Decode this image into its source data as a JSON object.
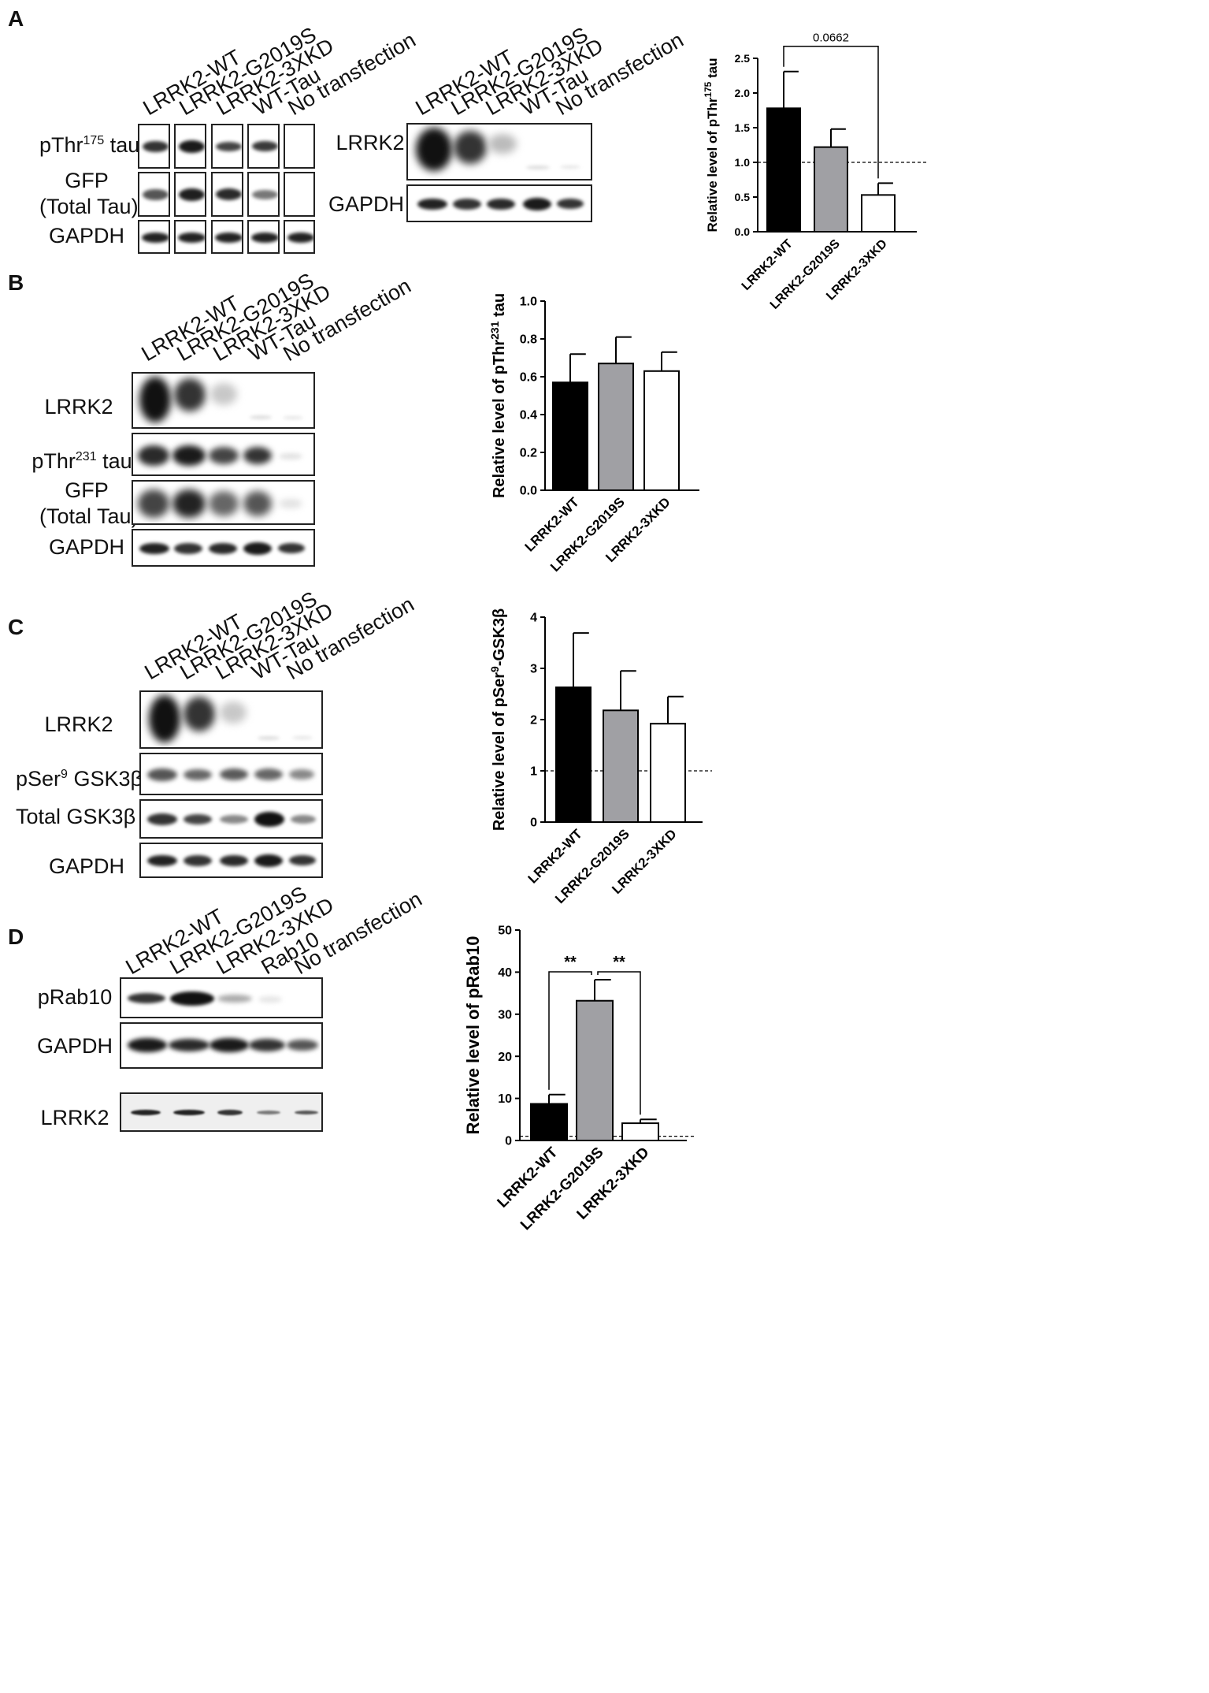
{
  "panels": {
    "A": {
      "letter": "A",
      "blot1": {
        "lanes": [
          "LRRK2-WT",
          "LRRK2-G2019S",
          "LRRK2-3XKD",
          "WT-Tau",
          "No transfection"
        ],
        "rows": [
          {
            "label_main": "pThr",
            "label_sup": "175",
            "label_tail": " tau"
          },
          {
            "label_line1": "GFP",
            "label_line2": "(Total Tau)"
          },
          {
            "label": "GAPDH"
          }
        ]
      },
      "blot2": {
        "lanes": [
          "LRRK2-WT",
          "LRRK2-G2019S",
          "LRRK2-3XKD",
          "WT-Tau",
          "No transfection"
        ],
        "rows": [
          {
            "label": "LRRK2"
          },
          {
            "label": "GAPDH"
          }
        ]
      }
    },
    "B": {
      "letter": "B",
      "blot": {
        "lanes": [
          "LRRK2-WT",
          "LRRK2-G2019S",
          "LRRK2-3XKD",
          "WT-Tau",
          "No transfection"
        ],
        "rows": [
          {
            "label": "LRRK2"
          },
          {
            "label_main": "pThr",
            "label_sup": "231",
            "label_tail": " tau"
          },
          {
            "label_line1": "GFP",
            "label_line2": "(Total Tau)"
          },
          {
            "label": "GAPDH"
          }
        ]
      }
    },
    "C": {
      "letter": "C",
      "blot": {
        "lanes": [
          "LRRK2-WT",
          "LRRK2-G2019S",
          "LRRK2-3XKD",
          "WT-Tau",
          "No transfection"
        ],
        "rows": [
          {
            "label": "LRRK2"
          },
          {
            "label_main": "pSer",
            "label_sup": "9",
            "label_tail": " GSK3β"
          },
          {
            "label": "Total GSK3β"
          },
          {
            "label": "GAPDH"
          }
        ]
      }
    },
    "D": {
      "letter": "D",
      "blot": {
        "lanes": [
          "LRRK2-WT",
          "LRRK2-G2019S",
          "LRRK2-3XKD",
          "Rab10",
          "No transfection"
        ],
        "rows": [
          {
            "label": "pRab10"
          },
          {
            "label": "GAPDH"
          },
          {
            "label": "LRRK2"
          }
        ]
      }
    }
  },
  "chart_data": [
    {
      "panel": "A",
      "type": "bar",
      "categories": [
        "LRRK2-WT",
        "LRRK2-G2019S",
        "LRRK2-3XKD"
      ],
      "values": [
        1.78,
        1.22,
        0.53
      ],
      "errors": [
        0.53,
        0.26,
        0.17
      ],
      "colors": [
        "#000000",
        "#a0a0a4",
        "#ffffff"
      ],
      "ylabel_main": "Relative level of pThr",
      "ylabel_sup": "175",
      "ylabel_tail": " tau",
      "ylim": [
        0,
        2.5
      ],
      "ticks": [
        "0.0",
        "0.5",
        "1.0",
        "1.5",
        "2.0",
        "2.5"
      ],
      "reference_line": 1.0,
      "annotations": [
        {
          "from": 0,
          "to": 2,
          "text": "0.0662"
        }
      ]
    },
    {
      "panel": "B",
      "type": "bar",
      "categories": [
        "LRRK2-WT",
        "LRRK2-G2019S",
        "LRRK2-3XKD"
      ],
      "values": [
        0.57,
        0.67,
        0.63
      ],
      "errors": [
        0.15,
        0.14,
        0.1
      ],
      "colors": [
        "#000000",
        "#a0a0a4",
        "#ffffff"
      ],
      "ylabel_main": "Relative level of pThr",
      "ylabel_sup": "231",
      "ylabel_tail": " tau",
      "ylim": [
        0,
        1.0
      ],
      "ticks": [
        "0.0",
        "0.2",
        "0.4",
        "0.6",
        "0.8",
        "1.0"
      ],
      "reference_line": null,
      "annotations": []
    },
    {
      "panel": "C",
      "type": "bar",
      "categories": [
        "LRRK2-WT",
        "LRRK2-G2019S",
        "LRRK2-3XKD"
      ],
      "values": [
        2.63,
        2.18,
        1.92
      ],
      "errors": [
        1.06,
        0.77,
        0.53
      ],
      "colors": [
        "#000000",
        "#a0a0a4",
        "#ffffff"
      ],
      "ylabel_main": "Relative level of pSer",
      "ylabel_sup": "9",
      "ylabel_tail": "-GSK3β",
      "ylim": [
        0,
        4
      ],
      "ticks": [
        "0",
        "1",
        "2",
        "3",
        "4"
      ],
      "reference_line": 1.0,
      "annotations": []
    },
    {
      "panel": "D",
      "type": "bar",
      "categories": [
        "LRRK2-WT",
        "LRRK2-G2019S",
        "LRRK2-3XKD"
      ],
      "values": [
        8.7,
        33.2,
        4.1
      ],
      "errors": [
        2.2,
        5.0,
        0.9
      ],
      "colors": [
        "#000000",
        "#a0a0a4",
        "#ffffff"
      ],
      "ylabel_main": "Relative level of pRab10",
      "ylabel_sup": "",
      "ylabel_tail": "",
      "ylim": [
        0,
        50
      ],
      "ticks": [
        "0",
        "10",
        "20",
        "30",
        "40",
        "50"
      ],
      "reference_line": 1.0,
      "annotations": [
        {
          "from": 0,
          "to": 1,
          "text": "**"
        },
        {
          "from": 1,
          "to": 2,
          "text": "**"
        }
      ]
    }
  ]
}
